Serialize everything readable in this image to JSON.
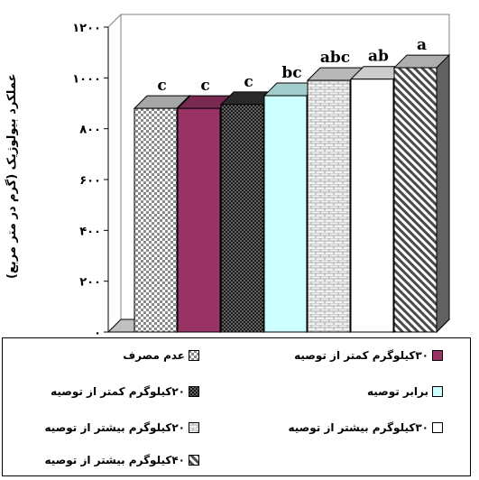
{
  "chart_data": {
    "type": "bar",
    "ylabel": "عملکرد بیولوژیک (گرم در متر مربع)",
    "ylim": [
      0,
      1200
    ],
    "yticks": [
      "۰",
      "۲۰۰",
      "۴۰۰",
      "۶۰۰",
      "۸۰۰",
      "۱۰۰۰",
      "۱۲۰۰"
    ],
    "ytick_values": [
      0,
      200,
      400,
      600,
      800,
      1000,
      1200
    ],
    "grid": false,
    "legend_placement": "bottom",
    "categories": [
      "عدم مصرف",
      "۳۰کیلوگرم کمتر از توصیه",
      "۲۰کیلوگرم کمتر از توصیه",
      "برابر توصیه",
      "۲۰کیلوگرم بیشتر از توصیه",
      "۳۰کیلوگرم بیشتر از توصیه",
      "۴۰کیلوگرم بیشتر از توصیه"
    ],
    "values": [
      880,
      880,
      895,
      930,
      990,
      995,
      1040
    ],
    "annotations": [
      "",
      "c",
      "c",
      "c",
      "bc",
      "abc",
      "ab",
      "a"
    ],
    "bar_labels": [
      "c",
      "c",
      "c",
      "bc",
      "abc",
      "ab",
      "a"
    ],
    "colors": [
      "#cfcfcf",
      "#993366",
      "#333333",
      "#ccffff",
      "#e6e6e6",
      "#ffffff",
      "#d9d9d9"
    ],
    "patterns": [
      "checker",
      "solid",
      "dots",
      "solid",
      "brick",
      "solid",
      "diagonal"
    ]
  }
}
